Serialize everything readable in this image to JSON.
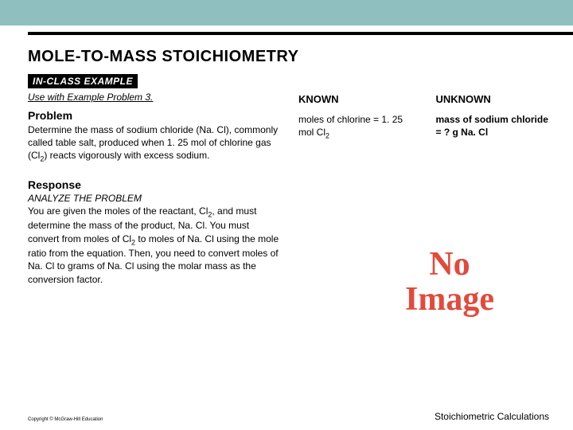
{
  "styling": {
    "band_color": "#8fbfbf",
    "rule_color": "#000000",
    "noimage_color": "#e24a3b",
    "badge_bg": "#000000",
    "badge_fg": "#ffffff"
  },
  "title": "MOLE-TO-MASS STOICHIOMETRY",
  "badge": "IN-CLASS EXAMPLE",
  "use_with": "Use with Example Problem 3.",
  "problem_heading": "Problem",
  "problem_text_pre": "Determine the mass of sodium chloride (Na. Cl), commonly called table salt, produced when 1. 25 mol of chlorine gas (Cl",
  "problem_sub": "2",
  "problem_text_post": ") reacts vigorously with excess sodium.",
  "response_heading": "Response",
  "analyze_label": "ANALYZE THE PROBLEM",
  "response_text_1": "You are given the moles of the reactant, Cl",
  "response_sub1": "2",
  "response_text_2": ", and must determine the mass of the product, Na. Cl. You must convert from moles of Cl",
  "response_sub2": "2",
  "response_text_3": " to moles of Na. Cl using the mole ratio from the equation. Then, you need to convert moles of Na. Cl to grams of Na. Cl using the molar mass as the conversion factor.",
  "known_heading": "KNOWN",
  "known_line1": "moles of chlorine = 1. 25 mol Cl",
  "known_sub": "2",
  "unknown_heading": "UNKNOWN",
  "unknown_text": "mass of sodium chloride = ? g Na. Cl",
  "noimage_l1": "No",
  "noimage_l2": "Image",
  "copyright": "Copyright © McGraw-Hill Education",
  "footer": "Stoichiometric Calculations"
}
